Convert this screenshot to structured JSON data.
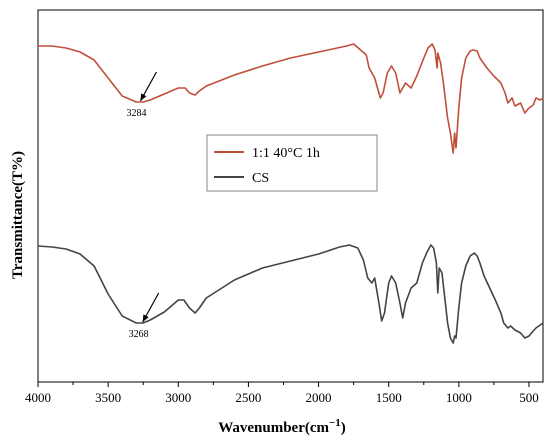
{
  "chart_data": {
    "type": "line",
    "xlabel_main": "Wavenumber",
    "xlabel_unit": "(cm",
    "xlabel_sup": "−1",
    "xlabel_close": ")",
    "ylabel": "Transmittance(T%)",
    "xlim": [
      4000,
      400
    ],
    "x_reversed": true,
    "y_ticks_shown": false,
    "xticks": [
      4000,
      3500,
      3000,
      2500,
      2000,
      1500,
      1000,
      500
    ],
    "xtick_labels": [
      "4000",
      "3500",
      "3000",
      "2500",
      "2000",
      "1500",
      "1000",
      "500"
    ],
    "legend_position": "center",
    "series": [
      {
        "name": "1:1 40°C 1h",
        "color": "#c0503a",
        "points": [
          [
            4000,
            8
          ],
          [
            3900,
            8
          ],
          [
            3800,
            10
          ],
          [
            3700,
            14
          ],
          [
            3600,
            22
          ],
          [
            3500,
            40
          ],
          [
            3400,
            58
          ],
          [
            3300,
            64
          ],
          [
            3250,
            64
          ],
          [
            3200,
            62
          ],
          [
            3100,
            56
          ],
          [
            3000,
            50
          ],
          [
            2950,
            50
          ],
          [
            2920,
            55
          ],
          [
            2880,
            57
          ],
          [
            2850,
            53
          ],
          [
            2800,
            48
          ],
          [
            2600,
            37
          ],
          [
            2400,
            28
          ],
          [
            2200,
            20
          ],
          [
            2000,
            14
          ],
          [
            1800,
            8
          ],
          [
            1750,
            6
          ],
          [
            1700,
            12
          ],
          [
            1660,
            17
          ],
          [
            1640,
            30
          ],
          [
            1600,
            40
          ],
          [
            1560,
            60
          ],
          [
            1540,
            55
          ],
          [
            1510,
            35
          ],
          [
            1480,
            28
          ],
          [
            1450,
            35
          ],
          [
            1420,
            55
          ],
          [
            1400,
            50
          ],
          [
            1380,
            45
          ],
          [
            1340,
            50
          ],
          [
            1300,
            38
          ],
          [
            1250,
            20
          ],
          [
            1220,
            10
          ],
          [
            1190,
            6
          ],
          [
            1170,
            12
          ],
          [
            1155,
            30
          ],
          [
            1150,
            15
          ],
          [
            1130,
            25
          ],
          [
            1110,
            45
          ],
          [
            1080,
            80
          ],
          [
            1060,
            95
          ],
          [
            1040,
            115
          ],
          [
            1030,
            95
          ],
          [
            1020,
            110
          ],
          [
            1000,
            70
          ],
          [
            980,
            40
          ],
          [
            950,
            20
          ],
          [
            920,
            13
          ],
          [
            900,
            12
          ],
          [
            870,
            13
          ],
          [
            850,
            20
          ],
          [
            800,
            30
          ],
          [
            750,
            38
          ],
          [
            700,
            45
          ],
          [
            670,
            55
          ],
          [
            650,
            65
          ],
          [
            620,
            60
          ],
          [
            600,
            68
          ],
          [
            560,
            65
          ],
          [
            530,
            75
          ],
          [
            500,
            70
          ],
          [
            470,
            67
          ],
          [
            450,
            60
          ],
          [
            420,
            62
          ],
          [
            400,
            60
          ]
        ]
      },
      {
        "name": "CS",
        "color": "#444444",
        "points": [
          [
            4000,
            208
          ],
          [
            3900,
            209
          ],
          [
            3800,
            211
          ],
          [
            3700,
            216
          ],
          [
            3600,
            228
          ],
          [
            3500,
            256
          ],
          [
            3400,
            278
          ],
          [
            3300,
            285
          ],
          [
            3250,
            285
          ],
          [
            3200,
            282
          ],
          [
            3100,
            274
          ],
          [
            3000,
            262
          ],
          [
            2960,
            262
          ],
          [
            2920,
            270
          ],
          [
            2880,
            275
          ],
          [
            2850,
            270
          ],
          [
            2800,
            260
          ],
          [
            2600,
            242
          ],
          [
            2400,
            230
          ],
          [
            2200,
            223
          ],
          [
            2000,
            216
          ],
          [
            1850,
            209
          ],
          [
            1780,
            207
          ],
          [
            1720,
            210
          ],
          [
            1680,
            222
          ],
          [
            1650,
            240
          ],
          [
            1620,
            245
          ],
          [
            1600,
            240
          ],
          [
            1570,
            265
          ],
          [
            1550,
            283
          ],
          [
            1530,
            275
          ],
          [
            1500,
            245
          ],
          [
            1480,
            238
          ],
          [
            1450,
            245
          ],
          [
            1420,
            265
          ],
          [
            1400,
            280
          ],
          [
            1380,
            265
          ],
          [
            1340,
            250
          ],
          [
            1300,
            245
          ],
          [
            1260,
            225
          ],
          [
            1230,
            215
          ],
          [
            1200,
            207
          ],
          [
            1180,
            210
          ],
          [
            1160,
            225
          ],
          [
            1150,
            255
          ],
          [
            1140,
            230
          ],
          [
            1120,
            235
          ],
          [
            1100,
            260
          ],
          [
            1080,
            285
          ],
          [
            1060,
            300
          ],
          [
            1040,
            305
          ],
          [
            1030,
            298
          ],
          [
            1020,
            300
          ],
          [
            1000,
            270
          ],
          [
            980,
            245
          ],
          [
            950,
            228
          ],
          [
            920,
            218
          ],
          [
            890,
            215
          ],
          [
            870,
            218
          ],
          [
            850,
            225
          ],
          [
            820,
            238
          ],
          [
            780,
            250
          ],
          [
            740,
            262
          ],
          [
            700,
            275
          ],
          [
            680,
            285
          ],
          [
            650,
            290
          ],
          [
            630,
            288
          ],
          [
            600,
            292
          ],
          [
            560,
            295
          ],
          [
            530,
            300
          ],
          [
            500,
            298
          ],
          [
            470,
            293
          ],
          [
            450,
            290
          ],
          [
            430,
            288
          ],
          [
            400,
            285
          ]
        ]
      }
    ],
    "annotations": [
      {
        "series": 0,
        "x": 3284,
        "label": "3284"
      },
      {
        "series": 1,
        "x": 3268,
        "label": "3268"
      }
    ]
  }
}
